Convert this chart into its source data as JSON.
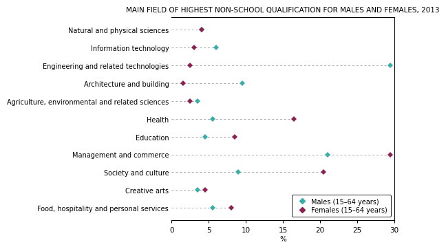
{
  "title": "MAIN FIELD OF HIGHEST NON-SCHOOL QUALIFICATION FOR MALES AND FEMALES, 2013",
  "categories": [
    "Natural and physical sciences",
    "Information technology",
    "Engineering and related technologies",
    "Architecture and building",
    "Agriculture, environmental and related sciences",
    "Health",
    "Education",
    "Management and commerce",
    "Society and culture",
    "Creative arts",
    "Food, hospitality and personal services"
  ],
  "males": [
    4.0,
    6.0,
    29.5,
    9.5,
    3.5,
    5.5,
    4.5,
    21.0,
    9.0,
    3.5,
    5.5
  ],
  "females": [
    4.0,
    3.0,
    2.5,
    1.5,
    2.5,
    16.5,
    8.5,
    29.5,
    20.5,
    4.5,
    8.0
  ],
  "male_color": "#3aada8",
  "female_color": "#8b2252",
  "xlim": [
    0,
    30
  ],
  "xticks": [
    0,
    5,
    10,
    15,
    20,
    25,
    30
  ],
  "xlabel": "%",
  "line_color": "#aaaaaa",
  "background_color": "#ffffff",
  "title_fontsize": 7.5,
  "label_fontsize": 7.0,
  "tick_fontsize": 7.5
}
